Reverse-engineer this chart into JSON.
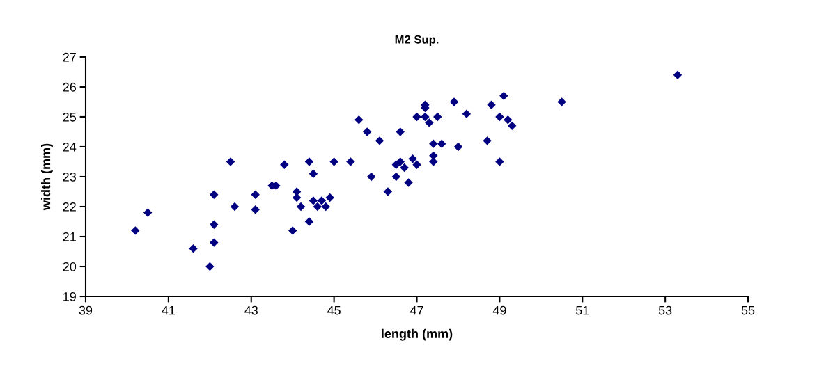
{
  "chart_data": {
    "type": "scatter",
    "title": "M2 Sup.",
    "xlabel": "length (mm)",
    "ylabel": "width (mm)",
    "xlim": [
      39,
      55
    ],
    "xticks": [
      39,
      41,
      43,
      45,
      47,
      49,
      51,
      53,
      55
    ],
    "ylim": [
      19,
      27
    ],
    "yticks": [
      19,
      20,
      21,
      22,
      23,
      24,
      25,
      26,
      27
    ],
    "grid": false,
    "marker": "diamond",
    "series": [
      {
        "color": "#000080",
        "x": [
          40.2,
          40.5,
          41.6,
          42.0,
          42.1,
          42.1,
          42.1,
          42.5,
          42.6,
          43.1,
          43.1,
          43.5,
          43.6,
          43.8,
          44.0,
          44.1,
          44.1,
          44.2,
          44.4,
          44.4,
          44.5,
          44.5,
          44.6,
          44.7,
          44.8,
          44.9,
          45.0,
          45.4,
          45.6,
          45.8,
          45.9,
          46.1,
          46.3,
          46.5,
          46.5,
          46.6,
          46.6,
          46.7,
          46.8,
          46.9,
          47.0,
          47.0,
          47.2,
          47.2,
          47.2,
          47.3,
          47.4,
          47.4,
          47.4,
          47.5,
          47.6,
          47.9,
          48.0,
          48.2,
          48.7,
          48.8,
          49.0,
          49.0,
          49.1,
          49.2,
          49.3,
          50.5,
          53.3
        ],
        "values": [
          21.2,
          21.8,
          20.6,
          20.0,
          20.8,
          21.4,
          22.4,
          23.5,
          22.0,
          21.9,
          22.4,
          22.7,
          22.7,
          23.4,
          21.2,
          22.5,
          22.3,
          22.0,
          21.5,
          23.5,
          23.1,
          22.2,
          22.0,
          22.2,
          22.0,
          22.3,
          23.5,
          23.5,
          24.9,
          24.5,
          23.0,
          24.2,
          22.5,
          23.4,
          23.0,
          23.5,
          24.5,
          23.3,
          22.8,
          23.6,
          23.4,
          25.0,
          25.3,
          25.4,
          25.0,
          24.8,
          24.1,
          23.7,
          23.5,
          25.0,
          24.1,
          25.5,
          24.0,
          25.1,
          24.2,
          25.4,
          23.5,
          25.0,
          25.7,
          24.9,
          24.7,
          25.5,
          26.4
        ]
      }
    ]
  }
}
